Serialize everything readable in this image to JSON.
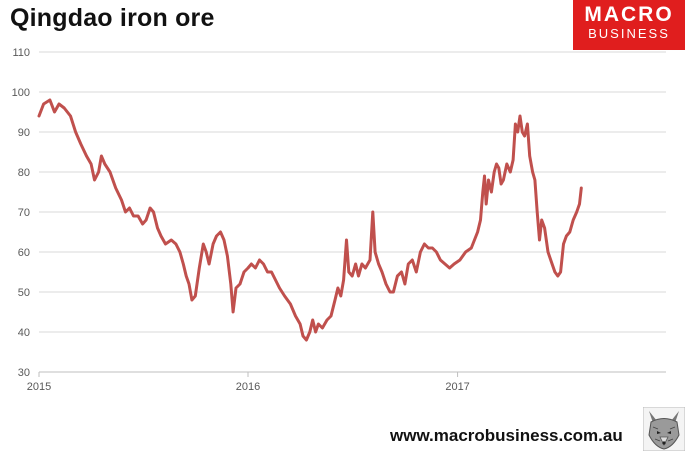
{
  "header": {
    "title": "Qingdao iron ore"
  },
  "logo": {
    "line1": "MACRO",
    "line2": "BUSINESS",
    "color": "#e01e1e"
  },
  "footer": {
    "website": "www.macrobusiness.com.au",
    "mascot_icon": "wolf-head-icon"
  },
  "chart_data": {
    "type": "line",
    "title": "Qingdao iron ore",
    "xlabel": "",
    "ylabel": "",
    "ylim": [
      30,
      110
    ],
    "yticks": [
      30,
      40,
      50,
      60,
      70,
      80,
      90,
      100,
      110
    ],
    "xlim": [
      "2015-01-01",
      "2017-12-31"
    ],
    "xticks": [
      {
        "date": "2015-01-01",
        "label": "2015"
      },
      {
        "date": "2016-01-01",
        "label": "2016"
      },
      {
        "date": "2017-01-01",
        "label": "2017"
      }
    ],
    "grid": true,
    "line_color": "#c0504d",
    "series": [
      {
        "points": [
          [
            "2015-01-01",
            94
          ],
          [
            "2015-01-09",
            97
          ],
          [
            "2015-01-20",
            98
          ],
          [
            "2015-01-28",
            95
          ],
          [
            "2015-02-05",
            97
          ],
          [
            "2015-02-14",
            96
          ],
          [
            "2015-02-25",
            94
          ],
          [
            "2015-03-06",
            90
          ],
          [
            "2015-03-15",
            87
          ],
          [
            "2015-03-25",
            84
          ],
          [
            "2015-04-02",
            82
          ],
          [
            "2015-04-08",
            78
          ],
          [
            "2015-04-15",
            80
          ],
          [
            "2015-04-20",
            84
          ],
          [
            "2015-04-26",
            82
          ],
          [
            "2015-05-05",
            80
          ],
          [
            "2015-05-15",
            76
          ],
          [
            "2015-05-25",
            73
          ],
          [
            "2015-06-01",
            70
          ],
          [
            "2015-06-08",
            71
          ],
          [
            "2015-06-15",
            69
          ],
          [
            "2015-06-23",
            69
          ],
          [
            "2015-07-01",
            67
          ],
          [
            "2015-07-07",
            68
          ],
          [
            "2015-07-14",
            71
          ],
          [
            "2015-07-20",
            70
          ],
          [
            "2015-07-27",
            66
          ],
          [
            "2015-08-02",
            64
          ],
          [
            "2015-08-10",
            62
          ],
          [
            "2015-08-20",
            63
          ],
          [
            "2015-08-28",
            62
          ],
          [
            "2015-09-04",
            60
          ],
          [
            "2015-09-10",
            57
          ],
          [
            "2015-09-15",
            54
          ],
          [
            "2015-09-20",
            52
          ],
          [
            "2015-09-25",
            48
          ],
          [
            "2015-10-01",
            49
          ],
          [
            "2015-10-08",
            56
          ],
          [
            "2015-10-15",
            62
          ],
          [
            "2015-10-20",
            60
          ],
          [
            "2015-10-25",
            57
          ],
          [
            "2015-11-01",
            62
          ],
          [
            "2015-11-07",
            64
          ],
          [
            "2015-11-14",
            65
          ],
          [
            "2015-11-20",
            63
          ],
          [
            "2015-11-26",
            59
          ],
          [
            "2015-12-02",
            52
          ],
          [
            "2015-12-06",
            45
          ],
          [
            "2015-12-11",
            51
          ],
          [
            "2015-12-18",
            52
          ],
          [
            "2015-12-25",
            55
          ],
          [
            "2016-01-01",
            56
          ],
          [
            "2016-01-07",
            57
          ],
          [
            "2016-01-14",
            56
          ],
          [
            "2016-01-21",
            58
          ],
          [
            "2016-01-28",
            57
          ],
          [
            "2016-02-04",
            55
          ],
          [
            "2016-02-11",
            55
          ],
          [
            "2016-02-18",
            53
          ],
          [
            "2016-02-25",
            51
          ],
          [
            "2016-03-05",
            49
          ],
          [
            "2016-03-15",
            47
          ],
          [
            "2016-03-24",
            44
          ],
          [
            "2016-04-01",
            42
          ],
          [
            "2016-04-06",
            39
          ],
          [
            "2016-04-12",
            38
          ],
          [
            "2016-04-18",
            40
          ],
          [
            "2016-04-23",
            43
          ],
          [
            "2016-04-28",
            40
          ],
          [
            "2016-05-03",
            42
          ],
          [
            "2016-05-10",
            41
          ],
          [
            "2016-05-18",
            43
          ],
          [
            "2016-05-25",
            44
          ],
          [
            "2016-06-01",
            48
          ],
          [
            "2016-06-06",
            51
          ],
          [
            "2016-06-11",
            49
          ],
          [
            "2016-06-16",
            53
          ],
          [
            "2016-06-21",
            63
          ],
          [
            "2016-06-25",
            55
          ],
          [
            "2016-07-01",
            54
          ],
          [
            "2016-07-07",
            57
          ],
          [
            "2016-07-12",
            54
          ],
          [
            "2016-07-18",
            57
          ],
          [
            "2016-07-24",
            56
          ],
          [
            "2016-08-01",
            58
          ],
          [
            "2016-08-06",
            70
          ],
          [
            "2016-08-10",
            60
          ],
          [
            "2016-08-16",
            57
          ],
          [
            "2016-08-22",
            55
          ],
          [
            "2016-08-29",
            52
          ],
          [
            "2016-09-05",
            50
          ],
          [
            "2016-09-11",
            50
          ],
          [
            "2016-09-18",
            54
          ],
          [
            "2016-09-25",
            55
          ],
          [
            "2016-10-01",
            52
          ],
          [
            "2016-10-07",
            57
          ],
          [
            "2016-10-14",
            58
          ],
          [
            "2016-10-21",
            55
          ],
          [
            "2016-10-28",
            60
          ],
          [
            "2016-11-04",
            62
          ],
          [
            "2016-11-11",
            61
          ],
          [
            "2016-11-18",
            61
          ],
          [
            "2016-11-25",
            60
          ],
          [
            "2016-12-02",
            58
          ],
          [
            "2016-12-10",
            57
          ],
          [
            "2016-12-18",
            56
          ],
          [
            "2016-12-26",
            57
          ],
          [
            "2017-01-05",
            58
          ],
          [
            "2017-01-15",
            60
          ],
          [
            "2017-01-25",
            61
          ],
          [
            "2017-02-05",
            65
          ],
          [
            "2017-02-10",
            68
          ],
          [
            "2017-02-14",
            75
          ],
          [
            "2017-02-17",
            79
          ],
          [
            "2017-02-20",
            72
          ],
          [
            "2017-02-24",
            78
          ],
          [
            "2017-03-01",
            75
          ],
          [
            "2017-03-06",
            80
          ],
          [
            "2017-03-10",
            82
          ],
          [
            "2017-03-14",
            81
          ],
          [
            "2017-03-18",
            77
          ],
          [
            "2017-03-22",
            78
          ],
          [
            "2017-03-28",
            82
          ],
          [
            "2017-04-03",
            80
          ],
          [
            "2017-04-08",
            83
          ],
          [
            "2017-04-12",
            92
          ],
          [
            "2017-04-16",
            90
          ],
          [
            "2017-04-20",
            94
          ],
          [
            "2017-04-24",
            90
          ],
          [
            "2017-04-28",
            89
          ],
          [
            "2017-05-03",
            92
          ],
          [
            "2017-05-07",
            84
          ],
          [
            "2017-05-12",
            80
          ],
          [
            "2017-05-16",
            78
          ],
          [
            "2017-05-20",
            70
          ],
          [
            "2017-05-24",
            63
          ],
          [
            "2017-05-28",
            68
          ],
          [
            "2017-06-02",
            66
          ],
          [
            "2017-06-08",
            60
          ],
          [
            "2017-06-15",
            57
          ],
          [
            "2017-06-20",
            55
          ],
          [
            "2017-06-25",
            54
          ],
          [
            "2017-06-30",
            55
          ],
          [
            "2017-07-05",
            62
          ],
          [
            "2017-07-10",
            64
          ],
          [
            "2017-07-16",
            65
          ],
          [
            "2017-07-22",
            68
          ],
          [
            "2017-07-28",
            70
          ],
          [
            "2017-08-02",
            72
          ],
          [
            "2017-08-05",
            76
          ]
        ]
      }
    ]
  }
}
